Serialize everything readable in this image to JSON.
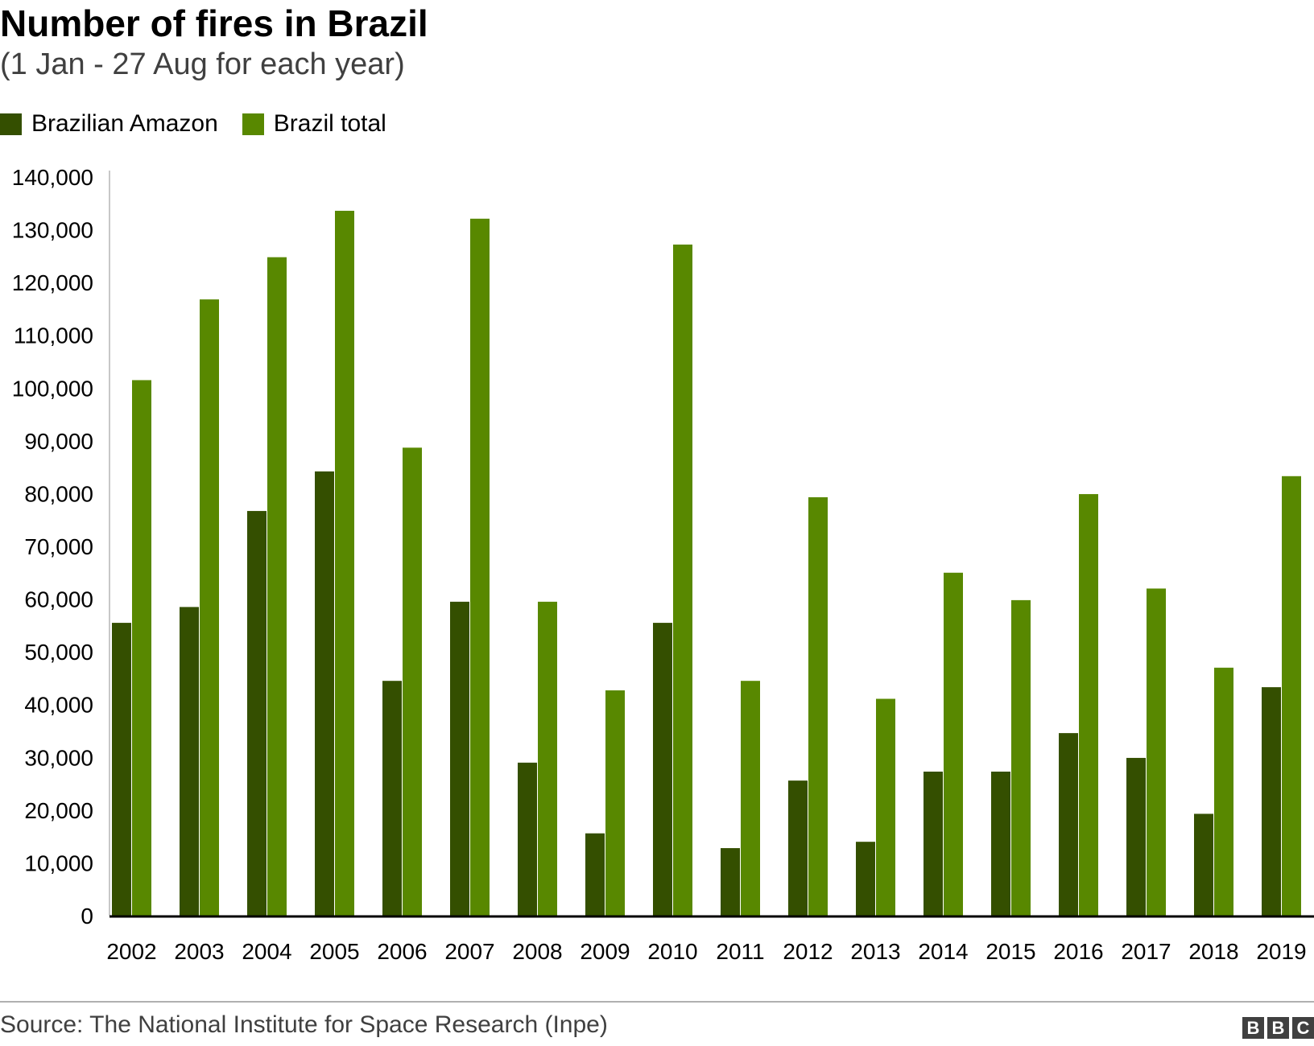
{
  "header": {
    "title": "Number of fires in Brazil",
    "subtitle": "(1 Jan - 27 Aug for each year)"
  },
  "legend": [
    {
      "label": "Brazilian Amazon",
      "color": "#344f00"
    },
    {
      "label": "Brazil total",
      "color": "#588800"
    }
  ],
  "footer": {
    "source": "Source: The National Institute for Space Research (Inpe)",
    "logo_letters": [
      "B",
      "B",
      "C"
    ]
  },
  "chart_data": {
    "type": "bar",
    "title": "Number of fires in Brazil",
    "subtitle": "(1 Jan - 27 Aug for each year)",
    "xlabel": "",
    "ylabel": "",
    "categories": [
      "2002",
      "2003",
      "2004",
      "2005",
      "2006",
      "2007",
      "2008",
      "2009",
      "2010",
      "2011",
      "2012",
      "2013",
      "2014",
      "2015",
      "2016",
      "2017",
      "2018",
      "2019"
    ],
    "series": [
      {
        "name": "Brazilian Amazon",
        "color": "#344f00",
        "values": [
          55500,
          58500,
          76700,
          84200,
          44500,
          59500,
          29000,
          15600,
          55500,
          12800,
          25600,
          14000,
          27300,
          27300,
          34600,
          29900,
          19300,
          43300
        ]
      },
      {
        "name": "Brazil total",
        "color": "#588800",
        "values": [
          101500,
          116800,
          124800,
          133600,
          88700,
          132100,
          59500,
          42700,
          127200,
          44500,
          79300,
          41100,
          65000,
          59800,
          79900,
          62000,
          47000,
          83300
        ]
      }
    ],
    "ylim": [
      0,
      140000
    ],
    "yticks": [
      0,
      10000,
      20000,
      30000,
      40000,
      50000,
      60000,
      70000,
      80000,
      90000,
      100000,
      110000,
      120000,
      130000,
      140000
    ],
    "ytick_labels": [
      "0",
      "10,000",
      "20,000",
      "30,000",
      "40,000",
      "50,000",
      "60,000",
      "70,000",
      "80,000",
      "90,000",
      "100,000",
      "110,000",
      "120,000",
      "130,000",
      "140,000"
    ],
    "grid": false,
    "legend_position": "top-left"
  }
}
